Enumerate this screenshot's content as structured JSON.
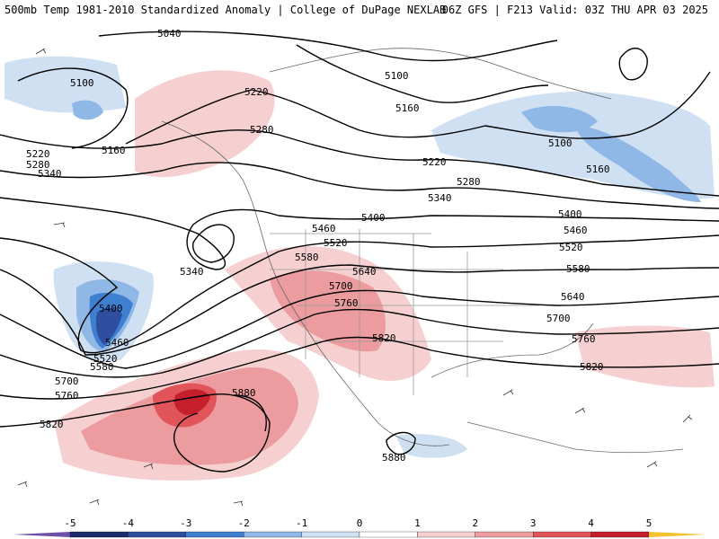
{
  "header": {
    "title_left": "500mb Temp 1981-2010 Standardized Anomaly | College of DuPage NEXLAB",
    "title_right": "06Z GFS | F213 Valid: 03Z THU APR 03 2025"
  },
  "contour_labels": {
    "c5040": "5040",
    "c5100": "5100",
    "c5160": "5160",
    "c5220": "5220",
    "c5280": "5280",
    "c5340": "5340",
    "c5400": "5400",
    "c5460": "5460",
    "c5520": "5520",
    "c5580": "5580",
    "c5640": "5640",
    "c5700": "5700",
    "c5760": "5760",
    "c5820": "5820",
    "c5880": "5880"
  },
  "colorbar": {
    "ticks": [
      "-5",
      "-4",
      "-3",
      "-2",
      "-1",
      "0",
      "1",
      "2",
      "3",
      "4",
      "5"
    ],
    "colors": [
      "#1c2a6b",
      "#2e4fa0",
      "#3f7fd0",
      "#8fb8e6",
      "#cfe0f3",
      "#ffffff",
      "#f6cfd0",
      "#ec9c9f",
      "#e0545a",
      "#c51f2c",
      "#8e0d16"
    ],
    "low_end_color": "#6b4fa8",
    "high_end_color": "#f2c230"
  }
}
